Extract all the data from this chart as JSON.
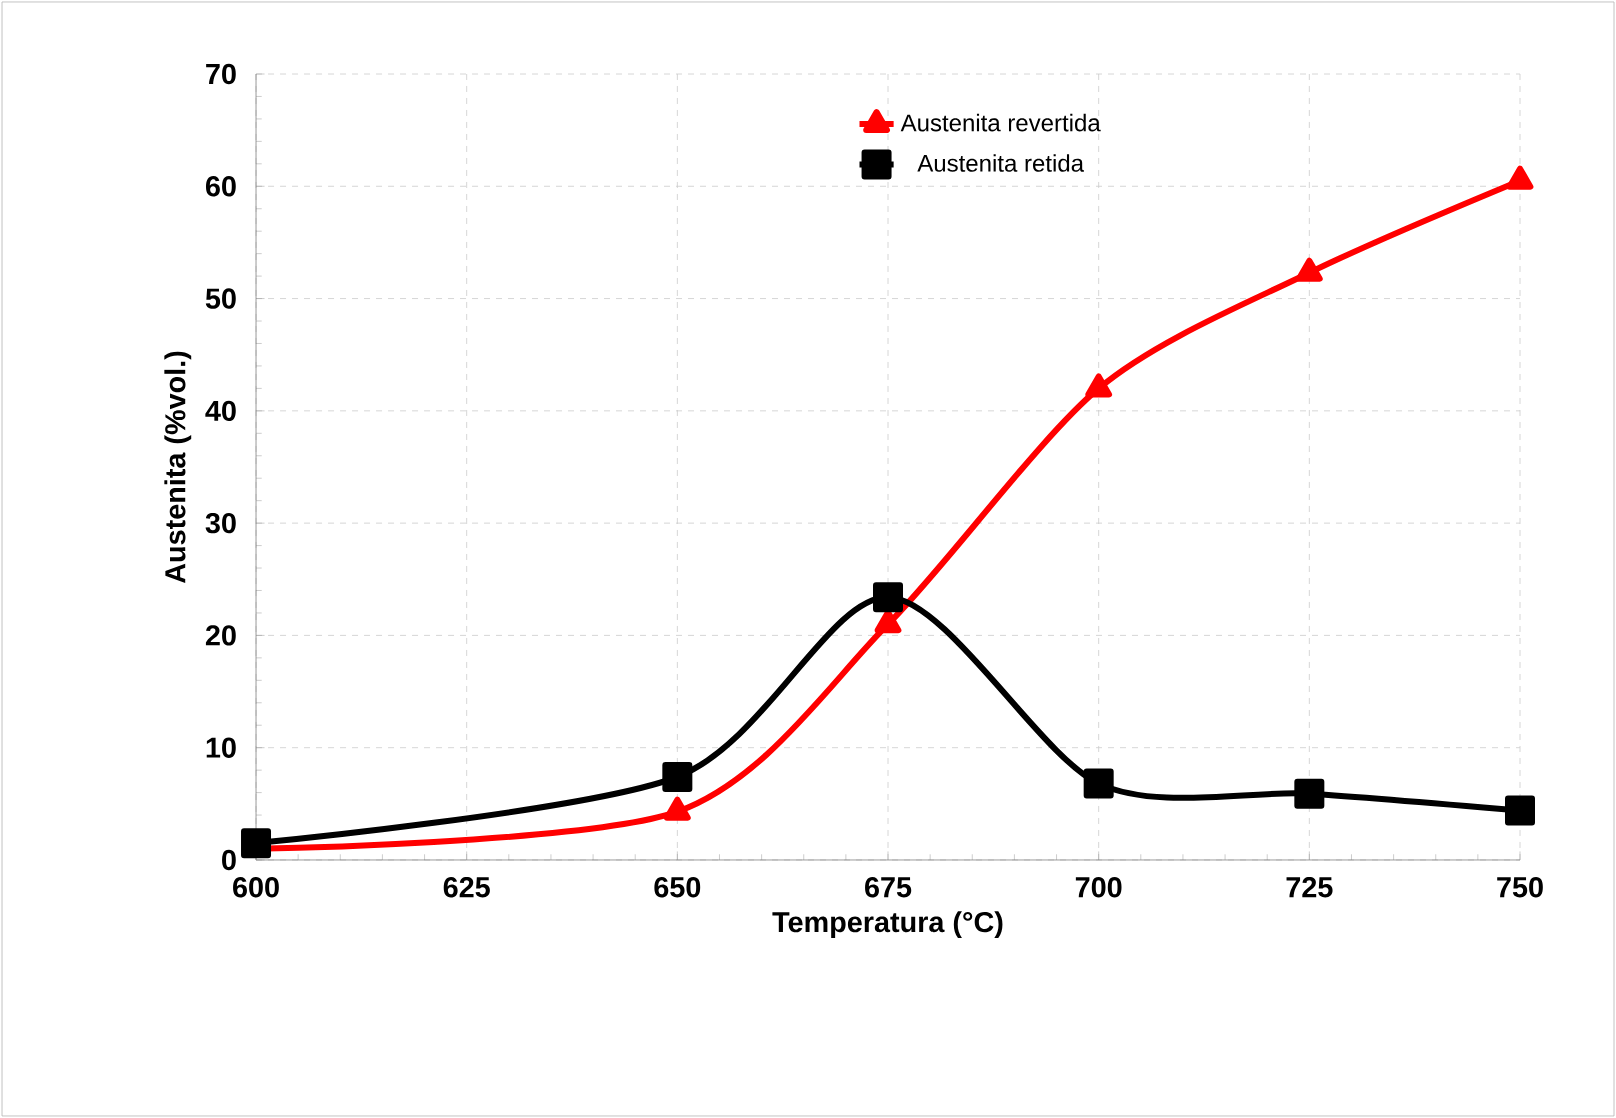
{
  "chart_data": {
    "type": "line",
    "xlabel": "Temperatura (°C)",
    "ylabel": "Austenita (%vol.)",
    "x": [
      600,
      650,
      675,
      700,
      725,
      750
    ],
    "series": [
      {
        "name": "Austenita revertida",
        "color": "#ff0000",
        "marker": "triangle",
        "values": [
          1.0,
          4.3,
          21,
          42,
          52.3,
          60.5
        ]
      },
      {
        "name": "Austenita retida",
        "color": "#000000",
        "marker": "square",
        "values": [
          1.5,
          7.4,
          23.4,
          6.8,
          5.9,
          4.4
        ]
      }
    ],
    "xlim": [
      600,
      750
    ],
    "xticks": [
      600,
      625,
      650,
      675,
      700,
      725,
      750
    ],
    "ylim": [
      0,
      70
    ],
    "yticks": [
      0,
      10,
      20,
      30,
      40,
      50,
      60,
      70
    ],
    "grid": true,
    "legend": "top"
  }
}
